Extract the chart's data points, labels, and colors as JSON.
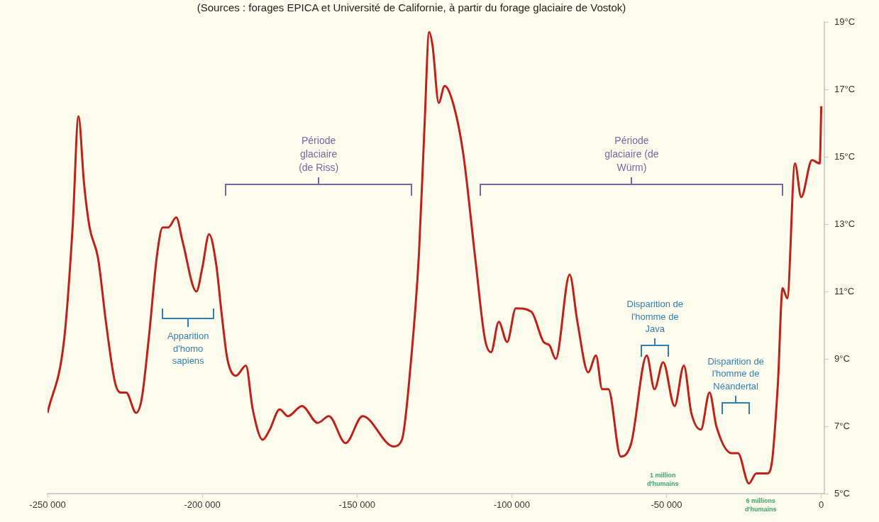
{
  "chart_data": {
    "type": "line",
    "subtitle": "(Sources : forages EPICA et Université de Californie, à partir du forage glaciaire de Vostok)",
    "x": [
      -250000,
      -244600,
      -241900,
      -240000,
      -238200,
      -236400,
      -233700,
      -231000,
      -228200,
      -226400,
      -224600,
      -221400,
      -219600,
      -217300,
      -214600,
      -212800,
      -211000,
      -208400,
      -206400,
      -201900,
      -200000,
      -197800,
      -195500,
      -193700,
      -191900,
      -189100,
      -185900,
      -183700,
      -180500,
      -178200,
      -175000,
      -172300,
      -167800,
      -162700,
      -159100,
      -153700,
      -148200,
      -138200,
      -135500,
      -132700,
      -130000,
      -128200,
      -126700,
      -125600,
      -123600,
      -121700,
      -118700,
      -115700,
      -111700,
      -108700,
      -106700,
      -104200,
      -101500,
      -98700,
      -93700,
      -89700,
      -87800,
      -85800,
      -81300,
      -78800,
      -75300,
      -72800,
      -70800,
      -68800,
      -64800,
      -61400,
      -56400,
      -53900,
      -51100,
      -47400,
      -44400,
      -42000,
      -38900,
      -36100,
      -33900,
      -28900,
      -26900,
      -23400,
      -21000,
      -17500,
      -16000,
      -14000,
      -12500,
      -11000,
      -8500,
      -6500,
      -3000,
      -500,
      0
    ],
    "series": [
      {
        "color": "#c0201a",
        "values": [
          7.4,
          9.6,
          12.9,
          16.2,
          14.2,
          12.9,
          12.0,
          10.0,
          8.3,
          8.0,
          8.0,
          7.4,
          7.8,
          9.6,
          12.1,
          12.9,
          12.9,
          13.2,
          12.5,
          11.0,
          11.7,
          12.7,
          11.8,
          10.3,
          9.0,
          8.5,
          8.8,
          7.5,
          6.6,
          6.9,
          7.5,
          7.3,
          7.6,
          7.1,
          7.3,
          6.5,
          7.3,
          6.4,
          6.6,
          8.8,
          12.1,
          15.9,
          18.7,
          18.3,
          16.6,
          17.1,
          16.5,
          15.1,
          11.9,
          9.6,
          9.2,
          10.1,
          9.5,
          10.5,
          10.4,
          9.5,
          9.4,
          9.0,
          11.5,
          10.1,
          8.6,
          9.1,
          8.1,
          8.1,
          6.1,
          6.5,
          9.1,
          8.1,
          8.9,
          7.6,
          8.8,
          7.4,
          6.9,
          8.0,
          7.0,
          6.2,
          6.2,
          5.3,
          5.6,
          5.6,
          5.9,
          8.3,
          11.1,
          10.8,
          14.8,
          13.8,
          14.9,
          14.8,
          16.5
        ]
      }
    ],
    "xlim": [
      -250000,
      1000
    ],
    "ylim": [
      5,
      19
    ],
    "xticks": [
      {
        "value": -250000,
        "label": "-250 000"
      },
      {
        "value": -200000,
        "label": "-200 000"
      },
      {
        "value": -150000,
        "label": "-150 000"
      },
      {
        "value": -100000,
        "label": "-100 000"
      },
      {
        "value": -50000,
        "label": "-50 000"
      },
      0
    ],
    "yticks": [
      {
        "value": 5,
        "label": "5°C"
      },
      {
        "value": 7,
        "label": "7°C"
      },
      {
        "value": 9,
        "label": "9°C"
      },
      {
        "value": 11,
        "label": "11°C"
      },
      {
        "value": 13,
        "label": "13°C"
      },
      {
        "value": 15,
        "label": "15°C"
      },
      {
        "value": 17,
        "label": "17°C"
      },
      {
        "value": 19,
        "label": "19°C"
      }
    ],
    "marker": "none",
    "annotations": [
      "Période glaciaire (de Riss)",
      "Période glaciaire (de Würm)",
      "Apparition d'homo sapiens",
      "Disparition de l'homme de Java",
      "Disparition de l'homme de Néandertal",
      "1 million d'humains",
      "6 millions d'humains"
    ]
  }
}
